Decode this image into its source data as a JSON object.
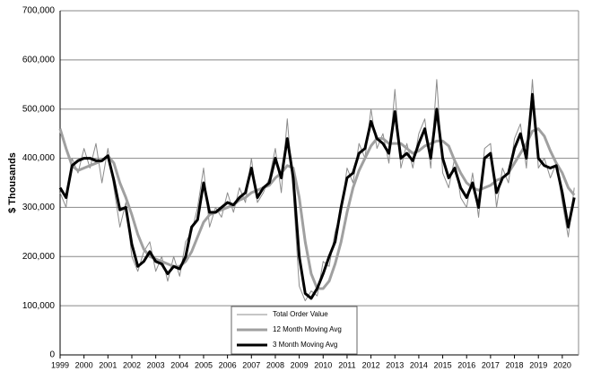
{
  "chart_data": {
    "type": "line",
    "y_label": "$ Thousands",
    "x": [
      1999,
      1999.25,
      1999.5,
      1999.75,
      2000,
      2000.25,
      2000.5,
      2000.75,
      2001,
      2001.25,
      2001.5,
      2001.75,
      2002,
      2002.25,
      2002.5,
      2002.75,
      2003,
      2003.25,
      2003.5,
      2003.75,
      2004,
      2004.25,
      2004.5,
      2004.75,
      2005,
      2005.25,
      2005.5,
      2005.75,
      2006,
      2006.25,
      2006.5,
      2006.75,
      2007,
      2007.25,
      2007.5,
      2007.75,
      2008,
      2008.25,
      2008.5,
      2008.75,
      2009,
      2009.25,
      2009.5,
      2009.75,
      2010,
      2010.25,
      2010.5,
      2010.75,
      2011,
      2011.25,
      2011.5,
      2011.75,
      2012,
      2012.25,
      2012.5,
      2012.75,
      2013,
      2013.25,
      2013.5,
      2013.75,
      2014,
      2014.25,
      2014.5,
      2014.75,
      2015,
      2015.25,
      2015.5,
      2015.75,
      2016,
      2016.25,
      2016.5,
      2016.75,
      2017,
      2017.25,
      2017.5,
      2017.75,
      2018,
      2018.25,
      2018.5,
      2018.75,
      2019,
      2019.25,
      2019.5,
      2019.75,
      2020,
      2020.25,
      2020.5
    ],
    "series": [
      {
        "name": "Total Order Value",
        "color": "#8c8c8c",
        "width": 1,
        "values": [
          330000,
          300000,
          400000,
          370000,
          420000,
          380000,
          430000,
          350000,
          420000,
          340000,
          260000,
          310000,
          200000,
          170000,
          210000,
          230000,
          170000,
          200000,
          150000,
          200000,
          160000,
          230000,
          250000,
          300000,
          380000,
          260000,
          300000,
          280000,
          330000,
          290000,
          340000,
          310000,
          400000,
          310000,
          330000,
          360000,
          420000,
          330000,
          480000,
          330000,
          140000,
          110000,
          130000,
          120000,
          190000,
          180000,
          250000,
          290000,
          380000,
          350000,
          430000,
          400000,
          500000,
          420000,
          450000,
          390000,
          540000,
          380000,
          430000,
          380000,
          450000,
          480000,
          380000,
          560000,
          370000,
          340000,
          400000,
          320000,
          300000,
          370000,
          280000,
          420000,
          430000,
          300000,
          380000,
          350000,
          440000,
          470000,
          380000,
          560000,
          380000,
          400000,
          360000,
          390000,
          310000,
          240000,
          340000
        ]
      },
      {
        "name": "12 Month Moving Avg",
        "color": "#a0a0a0",
        "width": 3,
        "values": [
          460000,
          420000,
          385000,
          375000,
          380000,
          385000,
          390000,
          395000,
          405000,
          390000,
          350000,
          320000,
          285000,
          245000,
          215000,
          200000,
          195000,
          190000,
          185000,
          180000,
          180000,
          190000,
          210000,
          240000,
          270000,
          285000,
          290000,
          295000,
          300000,
          305000,
          315000,
          320000,
          330000,
          335000,
          340000,
          345000,
          360000,
          370000,
          385000,
          380000,
          320000,
          230000,
          165000,
          135000,
          135000,
          150000,
          185000,
          230000,
          290000,
          340000,
          375000,
          400000,
          425000,
          440000,
          440000,
          430000,
          430000,
          430000,
          420000,
          410000,
          415000,
          425000,
          430000,
          435000,
          435000,
          425000,
          395000,
          370000,
          350000,
          340000,
          335000,
          340000,
          345000,
          355000,
          360000,
          370000,
          390000,
          410000,
          430000,
          455000,
          460000,
          445000,
          415000,
          390000,
          370000,
          340000,
          325000
        ]
      },
      {
        "name": "3 Month Moving Avg",
        "color": "#000000",
        "width": 3,
        "values": [
          340000,
          320000,
          385000,
          395000,
          400000,
          400000,
          395000,
          395000,
          405000,
          355000,
          295000,
          300000,
          225000,
          180000,
          190000,
          210000,
          190000,
          185000,
          165000,
          180000,
          175000,
          200000,
          260000,
          275000,
          350000,
          290000,
          290000,
          300000,
          310000,
          305000,
          320000,
          330000,
          380000,
          320000,
          340000,
          350000,
          400000,
          360000,
          440000,
          360000,
          200000,
          125000,
          115000,
          135000,
          165000,
          200000,
          230000,
          300000,
          360000,
          370000,
          410000,
          420000,
          475000,
          440000,
          430000,
          410000,
          495000,
          400000,
          410000,
          395000,
          430000,
          460000,
          400000,
          500000,
          400000,
          360000,
          380000,
          340000,
          320000,
          350000,
          300000,
          400000,
          410000,
          330000,
          360000,
          370000,
          420000,
          450000,
          400000,
          530000,
          400000,
          385000,
          380000,
          385000,
          330000,
          260000,
          320000
        ]
      }
    ],
    "xlim": [
      1999,
      2020.68
    ],
    "xticks": [
      1999,
      2000,
      2001,
      2002,
      2003,
      2004,
      2005,
      2006,
      2007,
      2008,
      2009,
      2010,
      2011,
      2012,
      2013,
      2014,
      2015,
      2016,
      2017,
      2018,
      2019,
      2020
    ],
    "ylim": [
      0,
      700000
    ],
    "yticks": [
      0,
      {
        "value": 100000,
        "label": "100,000"
      },
      {
        "value": 200000,
        "label": "200,000"
      },
      {
        "value": 300000,
        "label": "300,000"
      },
      {
        "value": 400000,
        "label": "400,000"
      },
      {
        "value": 500000,
        "label": "500,000"
      },
      {
        "value": 600000,
        "label": "600,000"
      },
      {
        "value": 700000,
        "label": "700,000"
      }
    ],
    "grid": true,
    "legend": "bottom"
  }
}
